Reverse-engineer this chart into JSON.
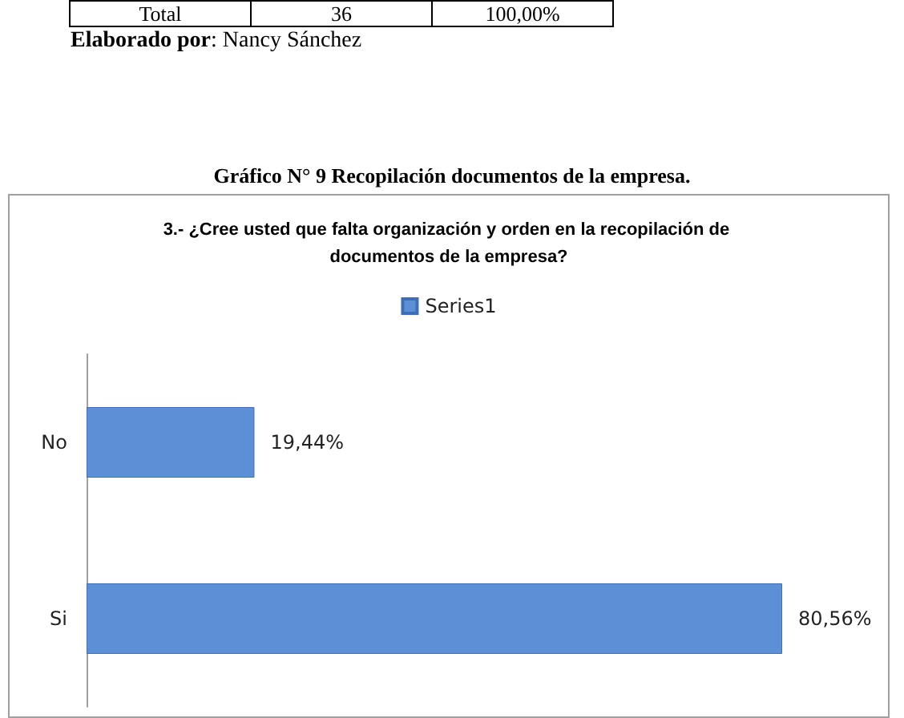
{
  "chart_data": {
    "type": "bar",
    "orientation": "horizontal",
    "title": "Gráfico N° 9 Recopilación documentos de la empresa.",
    "subtitle": "3.- ¿Cree usted que falta organización y orden en la recopilación de documentos de la empresa?",
    "categories": [
      "No",
      "Si"
    ],
    "series": [
      {
        "name": "Series1",
        "color": "#5b8fd6",
        "values": [
          19.44,
          80.56
        ],
        "value_labels": [
          "19,44%",
          "80,56%"
        ]
      }
    ],
    "legend": "top",
    "annotations": [
      "Total",
      "36",
      "100,00%",
      "Elaborado por: Nancy Sánchez"
    ]
  }
}
